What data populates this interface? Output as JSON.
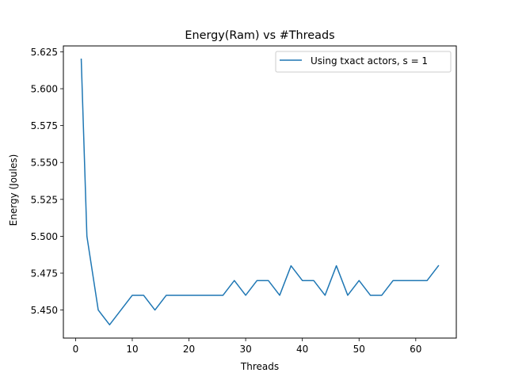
{
  "chart_data": {
    "type": "line",
    "title": "Energy(Ram) vs #Threads",
    "xlabel": "Threads",
    "ylabel": "Energy (Joules)",
    "xlim": [
      -2.15,
      67.15
    ],
    "ylim": [
      5.431,
      5.629
    ],
    "xticks": [
      0,
      10,
      20,
      30,
      40,
      50,
      60
    ],
    "yticks": [
      5.45,
      5.475,
      5.5,
      5.525,
      5.55,
      5.575,
      5.6,
      5.625
    ],
    "ytick_labels": [
      "5.450",
      "5.475",
      "5.500",
      "5.525",
      "5.550",
      "5.575",
      "5.600",
      "5.625"
    ],
    "grid": false,
    "legend_position": "top-right",
    "series": [
      {
        "name": "Using txact actors, s = 1",
        "color": "#1f77b4",
        "x": [
          1,
          2,
          4,
          6,
          8,
          10,
          12,
          14,
          16,
          18,
          20,
          22,
          24,
          26,
          28,
          30,
          32,
          34,
          36,
          38,
          40,
          42,
          44,
          46,
          48,
          50,
          52,
          54,
          56,
          58,
          60,
          62,
          64
        ],
        "y": [
          5.62,
          5.5,
          5.45,
          5.44,
          5.45,
          5.46,
          5.46,
          5.45,
          5.46,
          5.46,
          5.46,
          5.46,
          5.46,
          5.46,
          5.47,
          5.46,
          5.47,
          5.47,
          5.46,
          5.48,
          5.47,
          5.47,
          5.46,
          5.48,
          5.46,
          5.47,
          5.46,
          5.46,
          5.47,
          5.47,
          5.47,
          5.47,
          5.48
        ]
      }
    ]
  }
}
